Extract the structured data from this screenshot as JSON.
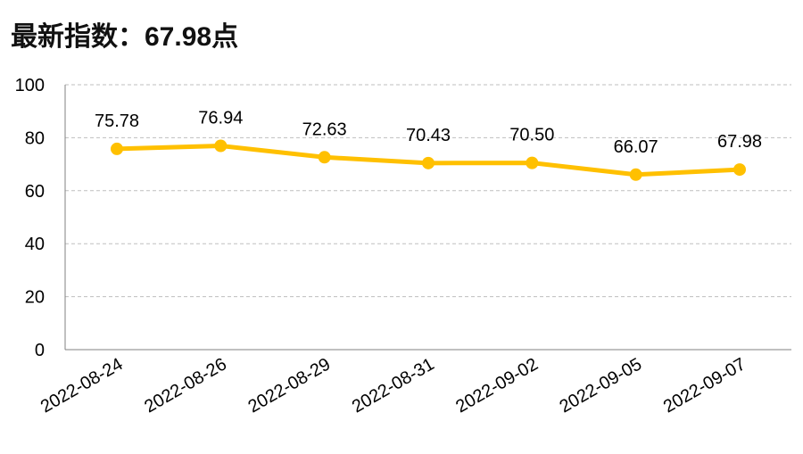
{
  "header": {
    "title": "最新指数：67.98点"
  },
  "chart_data": {
    "type": "line",
    "title": "最新指数：67.98点",
    "xlabel": "",
    "ylabel": "",
    "categories": [
      "2022-08-24",
      "2022-08-26",
      "2022-08-29",
      "2022-08-31",
      "2022-09-02",
      "2022-09-05",
      "2022-09-07"
    ],
    "series": [
      {
        "values": [
          75.78,
          76.94,
          72.63,
          70.43,
          70.5,
          66.07,
          67.98
        ],
        "labels": [
          "75.78",
          "76.94",
          "72.63",
          "70.43",
          "70.50",
          "66.07",
          "67.98"
        ]
      }
    ],
    "ylim": [
      0,
      100
    ],
    "yticks": [
      "0",
      "20",
      "40",
      "60",
      "80",
      "100"
    ],
    "grid": true,
    "legend": "none",
    "colors": {
      "line": "#FFC000",
      "grid": "#BFBFBF",
      "axis": "#808080"
    }
  }
}
